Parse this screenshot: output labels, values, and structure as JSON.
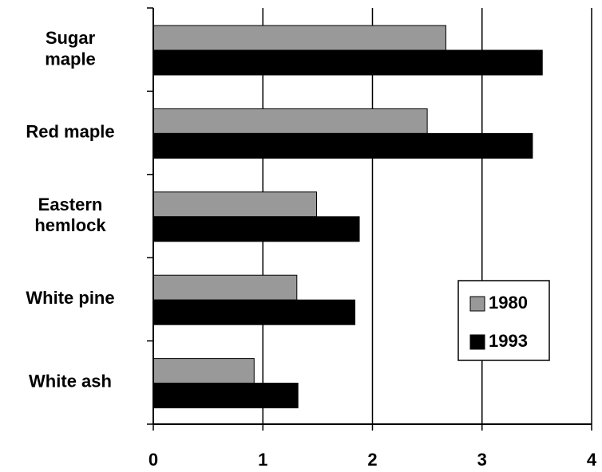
{
  "chart_data": {
    "type": "bar",
    "orientation": "horizontal",
    "categories": [
      "Sugar\nmaple",
      "Red maple",
      "Eastern\nhemlock",
      "White pine",
      "White ash"
    ],
    "series": [
      {
        "name": "1980",
        "color": "#999999",
        "values": [
          2.67,
          2.5,
          1.49,
          1.31,
          0.92
        ]
      },
      {
        "name": "1993",
        "color": "#000000",
        "values": [
          3.55,
          3.46,
          1.88,
          1.84,
          1.32
        ]
      }
    ],
    "xlim": [
      0,
      4
    ],
    "xticks": [
      0,
      1,
      2,
      3,
      4
    ],
    "grid": true,
    "legend": "right"
  }
}
